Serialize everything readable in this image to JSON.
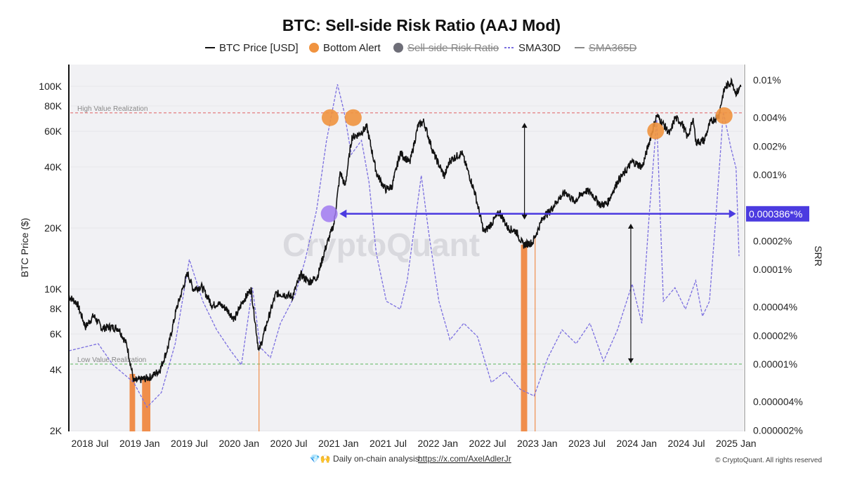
{
  "chart_data": {
    "type": "line",
    "title": "BTC: Sell-side Risk Ratio (AAJ Mod)",
    "legend": {
      "placement": "top",
      "items": [
        {
          "label": "BTC Price [USD]",
          "marker": "line",
          "color": "#111111",
          "hidden": false
        },
        {
          "label": "Bottom Alert",
          "marker": "circle",
          "color": "#f0933f",
          "hidden": false
        },
        {
          "label": "Sell-side Risk Ratio",
          "marker": "circle",
          "color": "#6e6e78",
          "hidden": true
        },
        {
          "label": "SMA30D",
          "marker": "dashed",
          "color": "#7b6fe0",
          "hidden": false
        },
        {
          "label": "SMA365D",
          "marker": "line",
          "color": "#888888",
          "hidden": true
        }
      ]
    },
    "y_left": {
      "label": "BTC Price ($)",
      "scale": "log",
      "range": [
        2000,
        120000
      ],
      "ticks": [
        "100K",
        "80K",
        "60K",
        "40K",
        "20K",
        "10K",
        "8K",
        "6K",
        "4K",
        "2K"
      ],
      "tick_values": [
        100000,
        80000,
        60000,
        40000,
        20000,
        10000,
        8000,
        6000,
        4000,
        2000
      ]
    },
    "y_right": {
      "label": "SRR",
      "scale": "log",
      "unit": "%",
      "range": [
        2e-06,
        0.012
      ],
      "ticks": [
        "0.01%",
        "0.004%",
        "0.002%",
        "0.001%",
        "0.0002%",
        "0.0001%",
        "0.00004%",
        "0.00002%",
        "0.00001%",
        "0.000004%",
        "0.000002%"
      ],
      "tick_values": [
        0.01,
        0.004,
        0.002,
        0.001,
        0.0002,
        0.0001,
        4e-05,
        2e-05,
        1e-05,
        4e-06,
        2e-06
      ]
    },
    "x_axis": {
      "type": "date",
      "range": [
        "2018-04-15",
        "2025-01-20"
      ],
      "ticks": [
        "2018 Jul",
        "2019 Jan",
        "2019 Jul",
        "2020 Jan",
        "2020 Jul",
        "2021 Jan",
        "2021 Jul",
        "2022 Jan",
        "2022 Jul",
        "2023 Jan",
        "2023 Jul",
        "2024 Jan",
        "2024 Jul",
        "2025 Jan"
      ],
      "tick_dates": [
        "2018-07-01",
        "2019-01-01",
        "2019-07-01",
        "2020-01-01",
        "2020-07-01",
        "2021-01-01",
        "2021-07-01",
        "2022-01-01",
        "2022-07-01",
        "2023-01-01",
        "2023-07-01",
        "2024-01-01",
        "2024-07-01",
        "2025-01-01"
      ]
    },
    "grid": true,
    "series": [
      {
        "name": "BTC Price [USD]",
        "axis": "left",
        "color": "#111111",
        "points": [
          [
            "2018-04-15",
            9200
          ],
          [
            "2018-05-15",
            8500
          ],
          [
            "2018-06-15",
            6500
          ],
          [
            "2018-07-15",
            7400
          ],
          [
            "2018-08-15",
            6400
          ],
          [
            "2018-09-15",
            6500
          ],
          [
            "2018-10-15",
            6400
          ],
          [
            "2018-11-15",
            5300
          ],
          [
            "2018-12-10",
            3500
          ],
          [
            "2019-01-15",
            3600
          ],
          [
            "2019-02-15",
            3700
          ],
          [
            "2019-03-15",
            4000
          ],
          [
            "2019-04-15",
            5200
          ],
          [
            "2019-05-15",
            8000
          ],
          [
            "2019-06-25",
            12000
          ],
          [
            "2019-07-15",
            10000
          ],
          [
            "2019-08-15",
            10300
          ],
          [
            "2019-09-25",
            8300
          ],
          [
            "2019-10-15",
            8500
          ],
          [
            "2019-11-15",
            8000
          ],
          [
            "2019-12-15",
            7100
          ],
          [
            "2020-01-15",
            8700
          ],
          [
            "2020-02-15",
            10000
          ],
          [
            "2020-03-13",
            4900
          ],
          [
            "2020-04-15",
            7000
          ],
          [
            "2020-05-15",
            9500
          ],
          [
            "2020-06-15",
            9400
          ],
          [
            "2020-07-15",
            9200
          ],
          [
            "2020-08-15",
            11800
          ],
          [
            "2020-09-15",
            10800
          ],
          [
            "2020-10-15",
            11500
          ],
          [
            "2020-11-15",
            16000
          ],
          [
            "2020-12-15",
            21000
          ],
          [
            "2021-01-08",
            38000
          ],
          [
            "2021-01-25",
            32000
          ],
          [
            "2021-02-20",
            56000
          ],
          [
            "2021-03-15",
            58000
          ],
          [
            "2021-04-14",
            63000
          ],
          [
            "2021-05-20",
            37000
          ],
          [
            "2021-06-22",
            31000
          ],
          [
            "2021-07-15",
            32000
          ],
          [
            "2021-08-15",
            47000
          ],
          [
            "2021-09-20",
            42000
          ],
          [
            "2021-10-20",
            64000
          ],
          [
            "2021-11-10",
            67000
          ],
          [
            "2021-12-15",
            47000
          ],
          [
            "2022-01-25",
            36000
          ],
          [
            "2022-02-15",
            43000
          ],
          [
            "2022-03-28",
            47000
          ],
          [
            "2022-04-15",
            40000
          ],
          [
            "2022-05-15",
            30000
          ],
          [
            "2022-06-18",
            19000
          ],
          [
            "2022-07-15",
            21000
          ],
          [
            "2022-08-15",
            24000
          ],
          [
            "2022-09-15",
            20000
          ],
          [
            "2022-10-15",
            19200
          ],
          [
            "2022-11-10",
            16500
          ],
          [
            "2022-12-15",
            17000
          ],
          [
            "2023-01-25",
            23000
          ],
          [
            "2023-02-15",
            24000
          ],
          [
            "2023-03-20",
            28000
          ],
          [
            "2023-04-15",
            30000
          ],
          [
            "2023-05-15",
            27000
          ],
          [
            "2023-06-25",
            30500
          ],
          [
            "2023-07-15",
            30000
          ],
          [
            "2023-08-20",
            26000
          ],
          [
            "2023-09-15",
            26500
          ],
          [
            "2023-10-25",
            34500
          ],
          [
            "2023-11-15",
            37000
          ],
          [
            "2023-12-15",
            42500
          ],
          [
            "2024-01-22",
            40000
          ],
          [
            "2024-02-15",
            52000
          ],
          [
            "2024-03-14",
            72000
          ],
          [
            "2024-04-15",
            63000
          ],
          [
            "2024-05-01",
            58000
          ],
          [
            "2024-05-20",
            70000
          ],
          [
            "2024-06-15",
            66000
          ],
          [
            "2024-07-05",
            56000
          ],
          [
            "2024-07-28",
            69000
          ],
          [
            "2024-08-05",
            53000
          ],
          [
            "2024-09-06",
            54000
          ],
          [
            "2024-09-27",
            66000
          ],
          [
            "2024-10-29",
            72000
          ],
          [
            "2024-11-13",
            90000
          ],
          [
            "2024-11-22",
            99000
          ],
          [
            "2024-12-17",
            106000
          ],
          [
            "2024-12-30",
            93000
          ],
          [
            "2025-01-10",
            95000
          ],
          [
            "2025-01-20",
            104000
          ]
        ]
      },
      {
        "name": "SMA30D",
        "axis": "right",
        "color": "#7b6fe0",
        "dashed": true,
        "points": [
          [
            "2018-04-15",
            1.38e-05
          ],
          [
            "2018-08-01",
            1.64e-05
          ],
          [
            "2018-09-25",
            9.8e-06
          ],
          [
            "2018-12-10",
            6.4e-06
          ],
          [
            "2019-01-28",
            3.5e-06
          ],
          [
            "2019-03-20",
            5e-06
          ],
          [
            "2019-05-10",
            1.64e-05
          ],
          [
            "2019-07-01",
            0.000127
          ],
          [
            "2019-08-20",
            4.6e-05
          ],
          [
            "2019-10-10",
            2.3e-05
          ],
          [
            "2019-12-01",
            1.38e-05
          ],
          [
            "2020-01-10",
            9.8e-06
          ],
          [
            "2020-02-20",
            6.4e-05
          ],
          [
            "2020-03-18",
            1.5e-05
          ],
          [
            "2020-04-25",
            1.17e-05
          ],
          [
            "2020-06-01",
            2.7e-05
          ],
          [
            "2020-07-25",
            5.4e-05
          ],
          [
            "2020-09-01",
            0.000127
          ],
          [
            "2020-10-12",
            0.00042
          ],
          [
            "2020-11-18",
            0.0023
          ],
          [
            "2020-12-28",
            0.009
          ],
          [
            "2021-01-22",
            0.0046
          ],
          [
            "2021-02-18",
            0.00164
          ],
          [
            "2021-03-25",
            0.0023
          ],
          [
            "2021-04-22",
            0.00083
          ],
          [
            "2021-05-18",
            0.00015
          ],
          [
            "2021-06-25",
            4.6e-05
          ],
          [
            "2021-08-15",
            3.8e-05
          ],
          [
            "2021-09-10",
            7.6e-05
          ],
          [
            "2021-11-01",
            0.00098
          ],
          [
            "2021-11-28",
            0.00025
          ],
          [
            "2022-01-05",
            4.6e-05
          ],
          [
            "2022-02-15",
            1.8e-05
          ],
          [
            "2022-04-05",
            2.7e-05
          ],
          [
            "2022-05-25",
            1.95e-05
          ],
          [
            "2022-07-15",
            6.4e-06
          ],
          [
            "2022-09-05",
            8.3e-06
          ],
          [
            "2022-10-30",
            5.4e-06
          ],
          [
            "2022-12-20",
            4.6e-06
          ],
          [
            "2023-02-10",
            1.17e-05
          ],
          [
            "2023-04-01",
            2.3e-05
          ],
          [
            "2023-05-22",
            1.64e-05
          ],
          [
            "2023-07-12",
            2.7e-05
          ],
          [
            "2023-09-01",
            1.07e-05
          ],
          [
            "2023-10-22",
            2.3e-05
          ],
          [
            "2023-12-15",
            7e-05
          ],
          [
            "2024-01-20",
            2.7e-05
          ],
          [
            "2024-02-18",
            0.00042
          ],
          [
            "2024-03-14",
            0.0038
          ],
          [
            "2024-04-08",
            4.6e-05
          ],
          [
            "2024-05-20",
            6.4e-05
          ],
          [
            "2024-06-28",
            3.8e-05
          ],
          [
            "2024-08-05",
            7.6e-05
          ],
          [
            "2024-08-30",
            3.2e-05
          ],
          [
            "2024-09-25",
            4.6e-05
          ],
          [
            "2024-10-20",
            0.00042
          ],
          [
            "2024-11-15",
            0.0046
          ],
          [
            "2024-12-12",
            0.00195
          ],
          [
            "2025-01-01",
            0.00117
          ],
          [
            "2025-01-12",
            0.000138
          ]
        ]
      }
    ],
    "bottom_alerts": [
      {
        "date": "2020-12-01",
        "srr": 0.004
      },
      {
        "date": "2021-02-25",
        "srr": 0.004
      },
      {
        "date": "2024-03-10",
        "srr": 0.0029
      },
      {
        "date": "2024-11-18",
        "srr": 0.0042
      }
    ],
    "bottom_alert_periods": [
      [
        "2018-11-25",
        "2018-12-15"
      ],
      [
        "2019-01-10",
        "2019-02-10"
      ],
      [
        "2020-03-12",
        "2020-03-14"
      ],
      [
        "2022-11-02",
        "2022-11-25"
      ],
      [
        "2022-12-22",
        "2022-12-24"
      ]
    ],
    "annotations": {
      "high_line": {
        "label": "High Value Realization",
        "srr": 0.0045,
        "color": "#e06060"
      },
      "low_line": {
        "label": "Low Value Realization",
        "srr": 1e-05,
        "color": "#5cb85c"
      },
      "current_level": {
        "label": "0.000386*%",
        "srr": 0.000386,
        "from_date": "2021-01-05",
        "to_date": "2025-01-01",
        "marker_date": "2020-11-28",
        "color": "#4b3be0"
      },
      "range_arrows": [
        {
          "date": "2022-11-15",
          "from_price": 66000,
          "to_price": 22000
        },
        {
          "date": "2023-12-10",
          "from_price": 21000,
          "to_price": 4300
        }
      ]
    }
  },
  "watermark": "CryptoQuant",
  "footer": {
    "emoji": "💎🙌",
    "text": "Daily on-chain analysis:",
    "link": "https://x.com/AxelAdlerJr",
    "copyright": "© CryptoQuant. All rights reserved"
  }
}
